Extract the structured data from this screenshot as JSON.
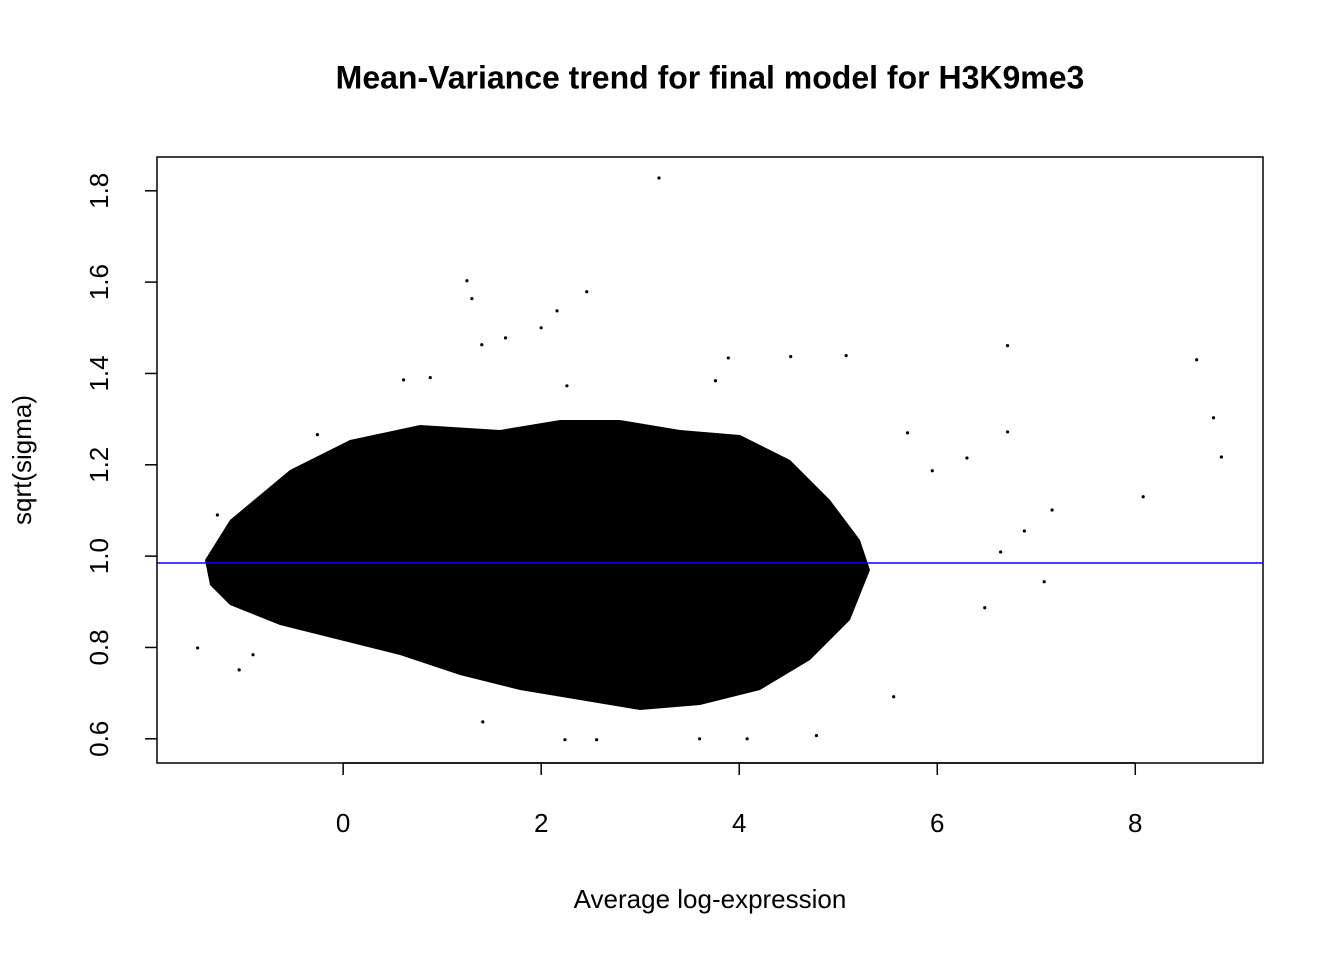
{
  "chart_data": {
    "type": "scatter",
    "title": "Mean-Variance trend for final model for H3K9me3",
    "xlabel": "Average log-expression",
    "ylabel": "sqrt(sigma)",
    "xlim": [
      -1.88,
      9.29
    ],
    "ylim": [
      0.547,
      1.874
    ],
    "xticks": [
      0,
      2,
      4,
      6,
      8
    ],
    "yticks": [
      0.6,
      0.8,
      {
        "value": 1,
        "label": "1.0"
      },
      1.2,
      1.4,
      1.6,
      1.8
    ],
    "series": [
      {
        "color": "#000000",
        "x": [
          3.19,
          1.25,
          1.3,
          2.46,
          2.16,
          2.0,
          1.64,
          1.4,
          6.71,
          8.62,
          8.79,
          8.87,
          8.08,
          7.16,
          7.08,
          -1.47,
          6.71,
          6.88,
          6.64,
          6.48,
          6.3,
          5.95,
          5.7,
          5.08,
          4.52,
          3.89,
          3.76,
          0.61,
          0.88,
          2.26,
          5.56,
          4.78,
          4.08,
          3.6,
          2.24,
          2.56,
          1.41,
          -1.05,
          -0.91,
          -1.27,
          -0.26
        ],
        "values": [
          1.828,
          1.603,
          1.564,
          1.579,
          1.537,
          1.5,
          1.478,
          1.463,
          1.461,
          1.43,
          1.303,
          1.217,
          1.13,
          1.101,
          0.944,
          0.799,
          1.272,
          1.055,
          1.009,
          0.887,
          1.215,
          1.187,
          1.27,
          1.439,
          1.437,
          1.434,
          1.384,
          1.386,
          1.391,
          1.373,
          0.692,
          0.607,
          0.6,
          0.6,
          0.598,
          0.598,
          0.637,
          0.751,
          0.784,
          1.09,
          1.266
        ]
      }
    ],
    "hline": {
      "value": 0.985,
      "color": "#0000ff"
    }
  }
}
